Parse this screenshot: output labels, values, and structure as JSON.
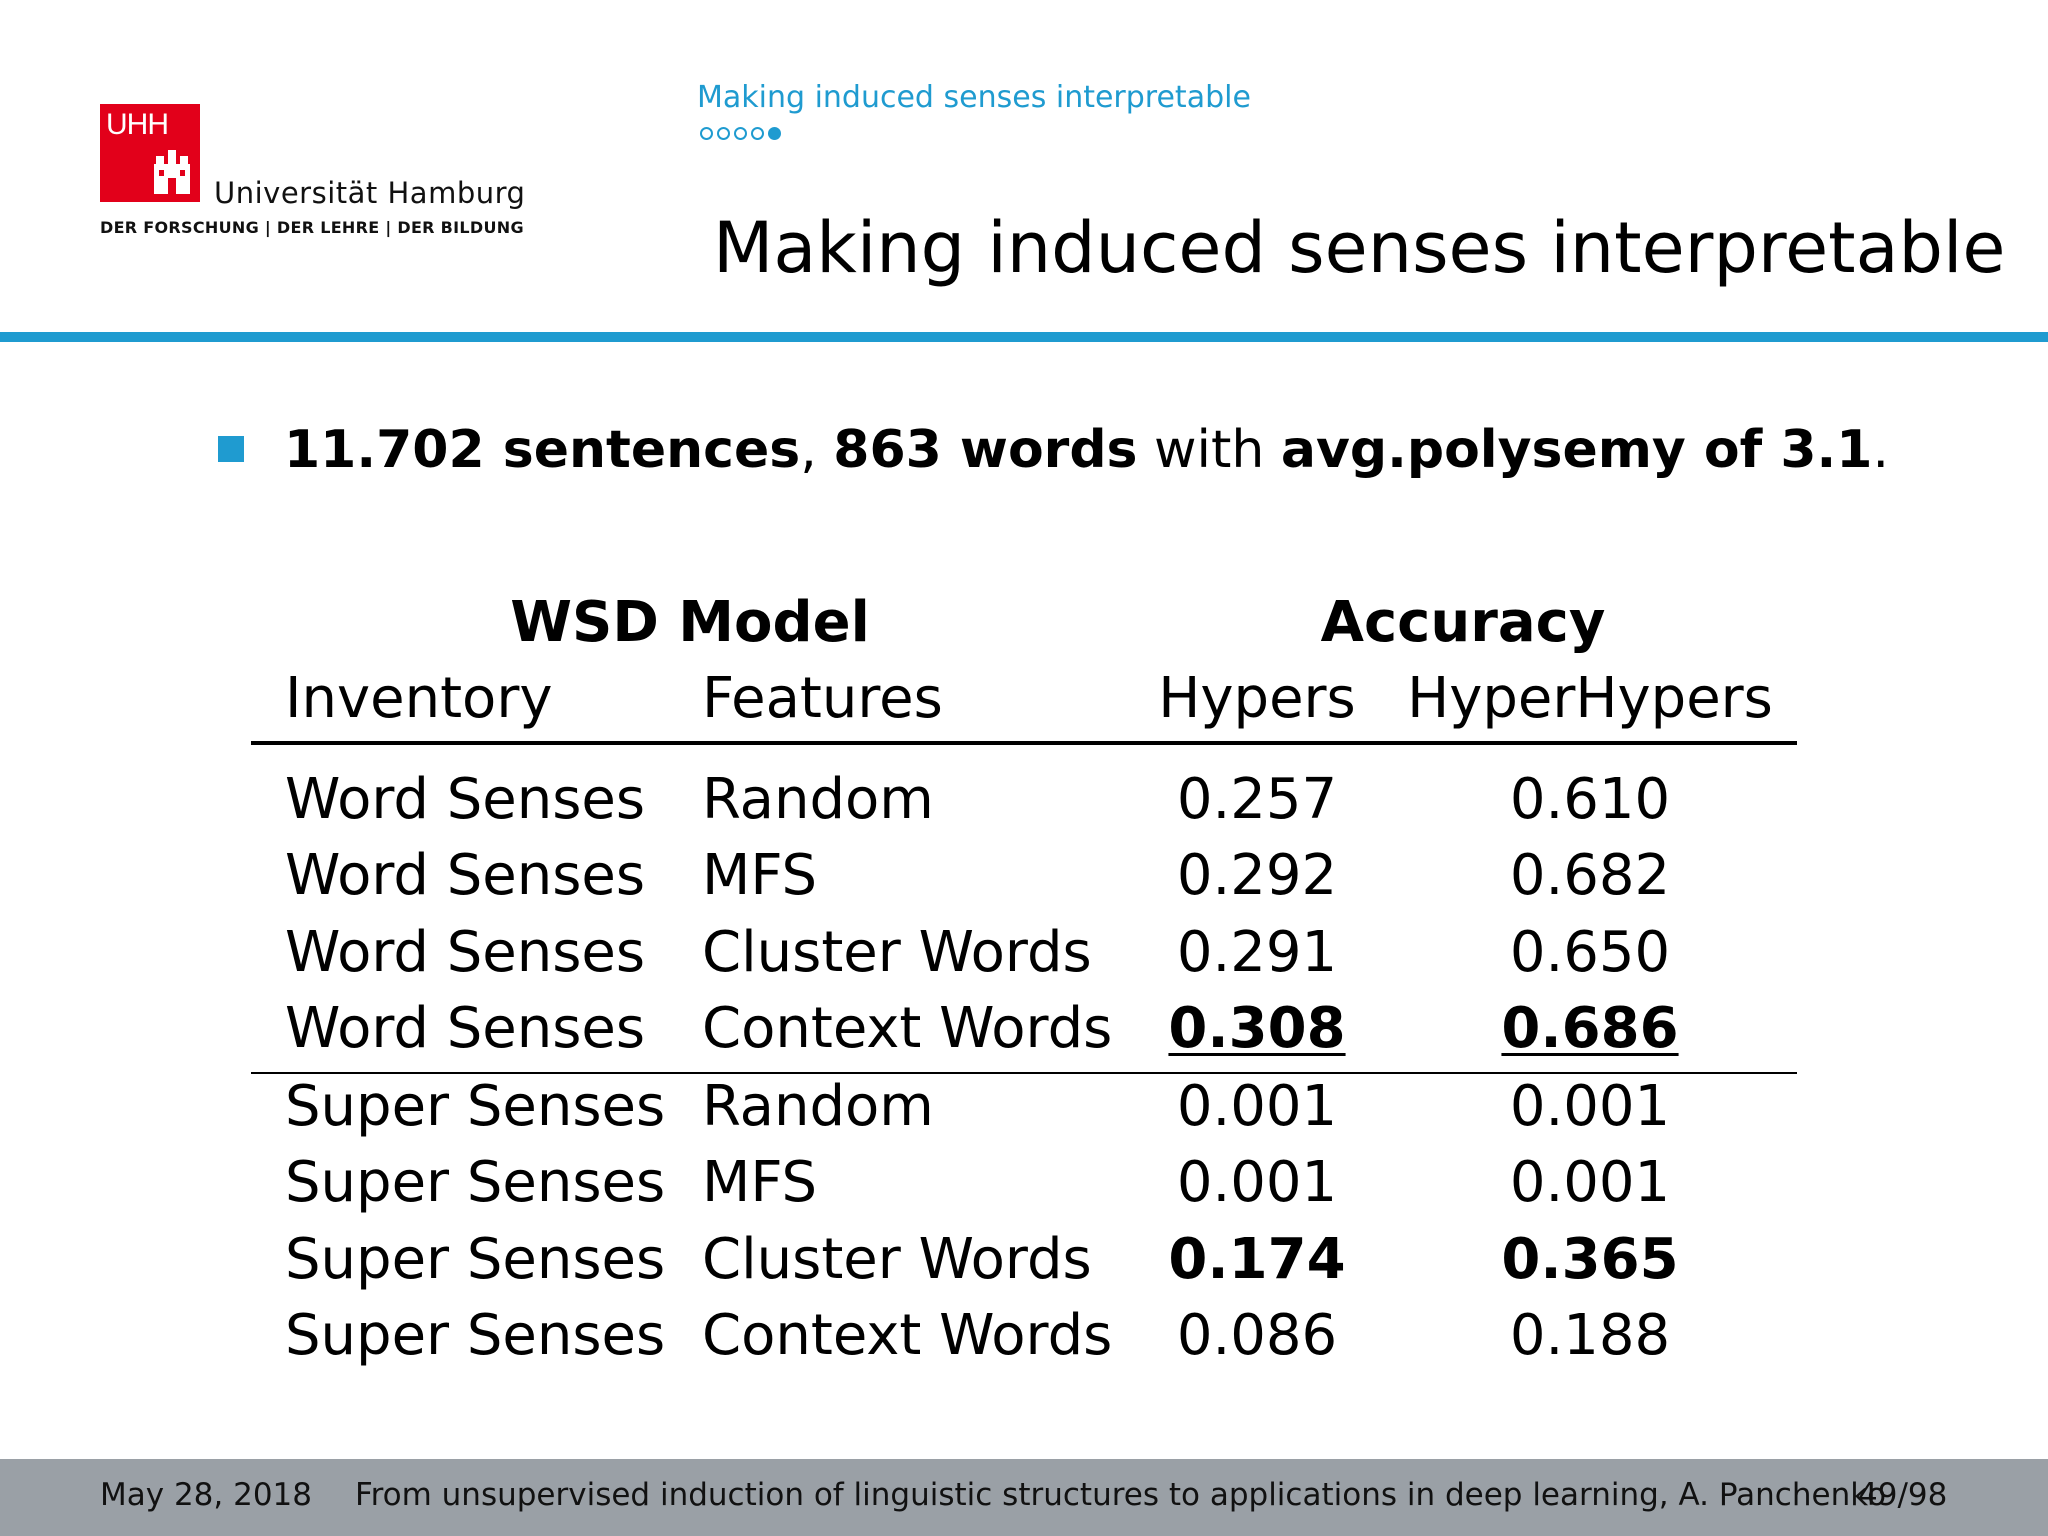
{
  "logo": {
    "letters": "UHH",
    "name": "Universität Hamburg",
    "tagline": "DER FORSCHUNG | DER LEHRE | DER BILDUNG",
    "color": "#e2001a"
  },
  "header": {
    "section": "Making induced senses interpretable",
    "nav_dots_total": 5,
    "nav_dots_active": 5,
    "title": "Making induced senses interpretable",
    "accent": "#1f9bd0"
  },
  "bullet": {
    "part1": "11.702 sentences",
    "part2": ", ",
    "part3": "863 words",
    "part4": " with ",
    "part5": "avg.polysemy of 3.1",
    "part6": "."
  },
  "table": {
    "group_headers": {
      "model": "WSD Model",
      "accuracy": "Accuracy"
    },
    "columns": {
      "inventory": "Inventory",
      "features": "Features",
      "hypers": "Hypers",
      "hyperhypers": "HyperHypers"
    },
    "rows": [
      {
        "inventory": "Word Senses",
        "features": "Random",
        "hypers": "0.257",
        "hyperhypers": "0.610"
      },
      {
        "inventory": "Word Senses",
        "features": "MFS",
        "hypers": "0.292",
        "hyperhypers": "0.682"
      },
      {
        "inventory": "Word Senses",
        "features": "Cluster Words",
        "hypers": "0.291",
        "hyperhypers": "0.650"
      },
      {
        "inventory": "Word Senses",
        "features": "Context Words",
        "hypers": "0.308",
        "hyperhypers": "0.686"
      },
      {
        "inventory": "Super Senses",
        "features": "Random",
        "hypers": "0.001",
        "hyperhypers": "0.001"
      },
      {
        "inventory": "Super Senses",
        "features": "MFS",
        "hypers": "0.001",
        "hyperhypers": "0.001"
      },
      {
        "inventory": "Super Senses",
        "features": "Cluster Words",
        "hypers": "0.174",
        "hyperhypers": "0.365"
      },
      {
        "inventory": "Super Senses",
        "features": "Context Words",
        "hypers": "0.086",
        "hyperhypers": "0.188"
      }
    ]
  },
  "footer": {
    "date": "May 28, 2018",
    "talk": "From unsupervised induction of linguistic structures to applications in deep learning, A. Panchenko",
    "page": "49/98"
  }
}
